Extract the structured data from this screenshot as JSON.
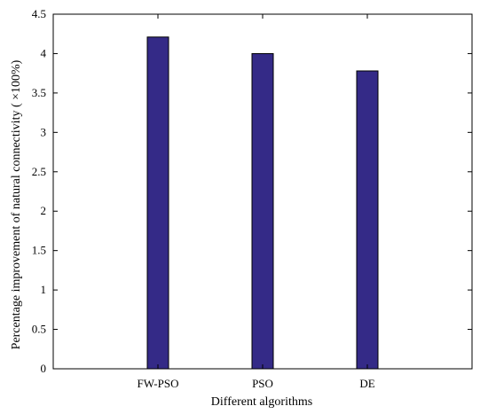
{
  "chart_data": {
    "type": "bar",
    "categories": [
      "FW-PSO",
      "PSO",
      "DE"
    ],
    "values": [
      4.21,
      4.0,
      3.78
    ],
    "xlabel": "Different algorithms",
    "ylabel": "Percentage improvement of natural connectivity ( ×100%)",
    "ylim": [
      0,
      4.5
    ],
    "yticks": [
      0,
      0.5,
      1,
      1.5,
      2,
      2.5,
      3,
      3.5,
      4,
      4.5
    ],
    "ytick_labels": [
      "0",
      "0.5",
      "1",
      "1.5",
      "2",
      "2.5",
      "3",
      "3.5",
      "4",
      "4.5"
    ],
    "bar_color": "#342a87",
    "grid": false,
    "legend": "none"
  }
}
